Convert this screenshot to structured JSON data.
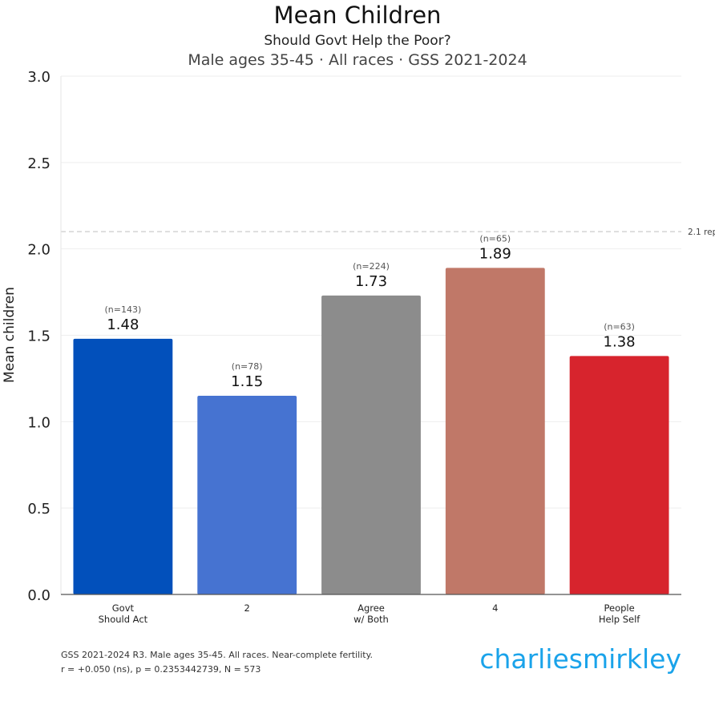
{
  "chart_data": {
    "type": "bar",
    "title": "Mean Children",
    "subtitle": "Should Govt Help the Poor?",
    "subtitle2": "Male ages 35-45 · All races · GSS 2021-2024",
    "xlabel": "",
    "ylabel": "Mean children",
    "ylim": [
      0,
      3.0
    ],
    "yticks": [
      0.0,
      0.5,
      1.0,
      1.5,
      2.0,
      2.5,
      3.0
    ],
    "ytick_labels": [
      "0.0",
      "0.5",
      "1.0",
      "1.5",
      "2.0",
      "2.5",
      "3.0"
    ],
    "grid": true,
    "categories": [
      [
        "Govt",
        "Should Act"
      ],
      [
        "2"
      ],
      [
        "Agree",
        "w/ Both"
      ],
      [
        "4"
      ],
      [
        "People",
        "Help Self"
      ]
    ],
    "values": [
      1.48,
      1.15,
      1.73,
      1.89,
      1.38
    ],
    "value_labels": [
      "1.48",
      "1.15",
      "1.73",
      "1.89",
      "1.38"
    ],
    "n_labels": [
      "(n=143)",
      "(n=78)",
      "(n=224)",
      "(n=65)",
      "(n=63)"
    ],
    "colors": [
      "#0250bb",
      "#4673d1",
      "#8c8c8c",
      "#c07868",
      "#d7242d"
    ],
    "reference_line": {
      "value": 2.1,
      "label": "2.1 rep",
      "color": "#cccccc"
    }
  },
  "footer": {
    "line1": "GSS 2021-2024 R3. Male ages 35-45. All races. Near-complete fertility.",
    "line2": "r = +0.050 (ns), p = 0.2353442739, N = 573",
    "brand": "charliesmirkley",
    "brand_color": "#1aa3ea"
  }
}
